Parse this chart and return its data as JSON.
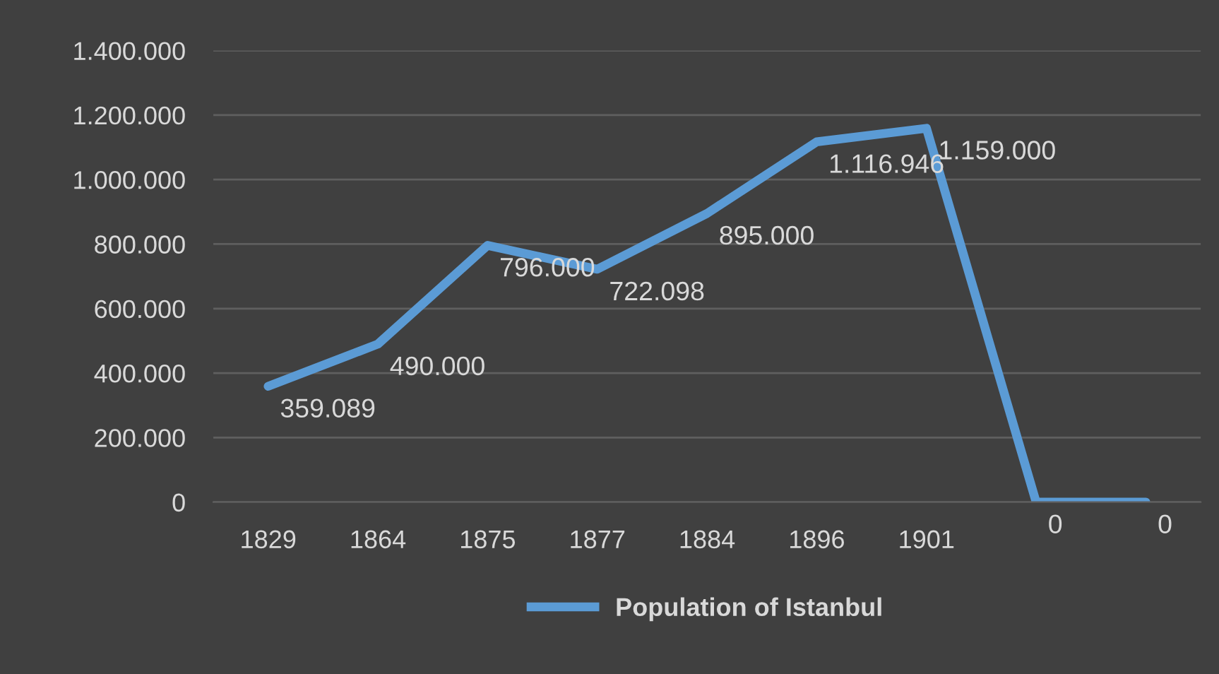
{
  "chart_data": {
    "type": "line",
    "categories": [
      "1829",
      "1864",
      "1875",
      "1877",
      "1884",
      "1896",
      "1901",
      null,
      null
    ],
    "series": [
      {
        "name": "Population of Istanbul",
        "color": "#5b9bd5",
        "values": [
          359089,
          490000,
          796000,
          722098,
          895000,
          1116946,
          1159000,
          0,
          0
        ],
        "value_labels": [
          "359.089",
          "490.000",
          "796.000",
          "722.098",
          "895.000",
          "1.116.946",
          "1.159.000",
          "0",
          "0"
        ]
      }
    ],
    "ylim": [
      0,
      1400000
    ],
    "yticks": [
      0,
      {
        "value": 200000,
        "label": "200.000"
      },
      {
        "value": 400000,
        "label": "400.000"
      },
      {
        "value": 600000,
        "label": "600.000"
      },
      {
        "value": 800000,
        "label": "800.000"
      },
      {
        "value": 1000000,
        "label": "1.000.000"
      },
      {
        "value": 1200000,
        "label": "1.200.000"
      },
      {
        "value": 1400000,
        "label": "1.400.000"
      }
    ],
    "grid": "y",
    "legend": "bottom",
    "marker": "none",
    "line_style": "solid"
  }
}
